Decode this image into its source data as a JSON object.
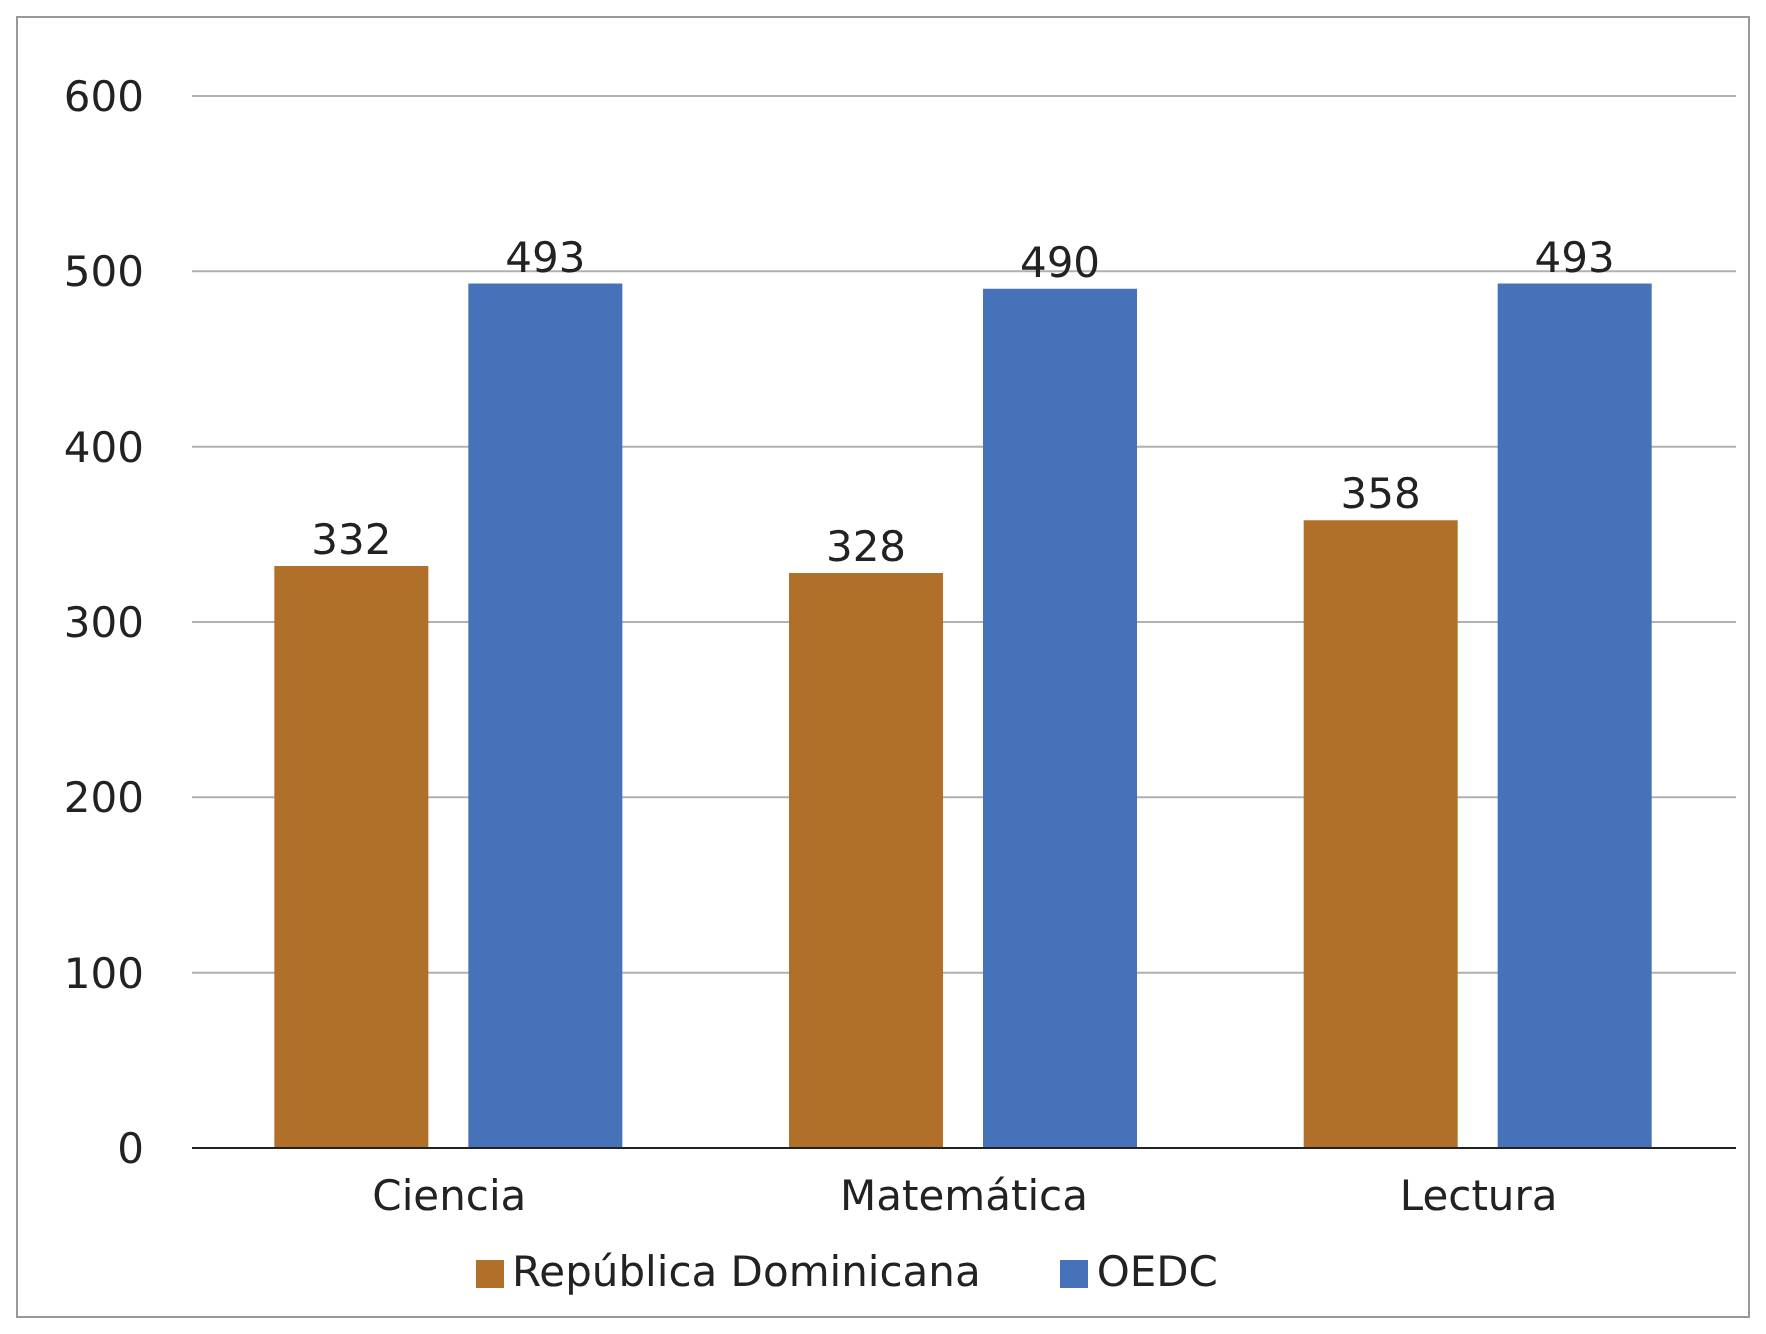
{
  "chart_data": {
    "type": "bar",
    "categories": [
      "Ciencia",
      "Matemática",
      "Lectura"
    ],
    "series": [
      {
        "name": "República Dominicana",
        "color": "#b0702a",
        "values": [
          332,
          328,
          358
        ]
      },
      {
        "name": "OEDC",
        "color": "#4672b9",
        "values": [
          493,
          490,
          493
        ]
      }
    ],
    "ylim": [
      0,
      600
    ],
    "yticks": [
      0,
      100,
      200,
      300,
      400,
      500,
      600
    ],
    "grid": "y",
    "legend": "bottom",
    "data_labels": true
  }
}
